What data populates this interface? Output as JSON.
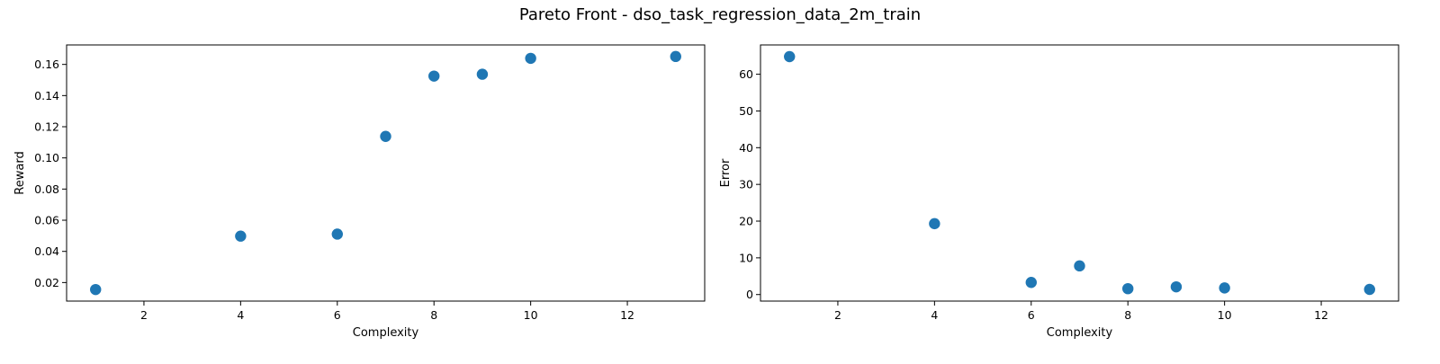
{
  "figure": {
    "suptitle": "Pareto Front - dso_task_regression_data_2m_train"
  },
  "chart_data": [
    {
      "type": "scatter",
      "title": "",
      "xlabel": "Complexity",
      "ylabel": "Reward",
      "x": [
        1,
        4,
        6,
        7,
        8,
        9,
        10,
        13
      ],
      "y": [
        0.0155,
        0.0498,
        0.0511,
        0.1138,
        0.1525,
        0.1537,
        0.1639,
        0.1651
      ],
      "xlim": [
        0.4,
        13.6
      ],
      "ylim": [
        0.0081,
        0.1725
      ],
      "xticks": [
        2,
        4,
        6,
        8,
        10,
        12
      ],
      "yticks": [
        0.02,
        0.04,
        0.06,
        0.08,
        0.1,
        0.12,
        0.14,
        0.16
      ],
      "ytick_labels": [
        "0.02",
        "0.04",
        "0.06",
        "0.08",
        "0.10",
        "0.12",
        "0.14",
        "0.16"
      ],
      "grid": false,
      "marker_color": "#1f77b4"
    },
    {
      "type": "scatter",
      "title": "",
      "xlabel": "Complexity",
      "ylabel": "Error",
      "x": [
        1,
        4,
        6,
        7,
        8,
        9,
        10,
        13
      ],
      "y": [
        64.8,
        19.3,
        3.3,
        7.8,
        1.6,
        2.1,
        1.8,
        1.4
      ],
      "xlim": [
        0.4,
        13.6
      ],
      "ylim": [
        -1.78,
        67.98
      ],
      "xticks": [
        2,
        4,
        6,
        8,
        10,
        12
      ],
      "yticks": [
        0,
        10,
        20,
        30,
        40,
        50,
        60
      ],
      "ytick_labels": [
        "0",
        "10",
        "20",
        "30",
        "40",
        "50",
        "60"
      ],
      "grid": false,
      "marker_color": "#1f77b4"
    }
  ]
}
